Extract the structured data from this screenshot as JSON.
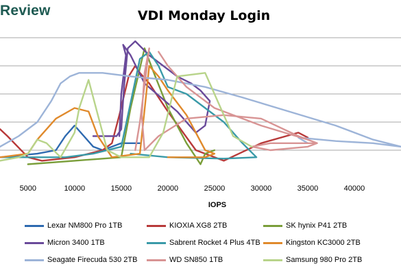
{
  "brand": "Review",
  "chart_data": {
    "type": "scatter",
    "title": "VDI Monday Login",
    "xlabel": "IOPS",
    "ylabel": "",
    "xlim": [
      2000,
      45000
    ],
    "ylim": [
      0,
      2.0
    ],
    "xticks": [
      5000,
      10000,
      15000,
      20000,
      25000,
      30000,
      35000,
      40000
    ],
    "grid": "horizontal",
    "legend_position": "bottom",
    "series": [
      {
        "name": "Lexar NM800 Pro 1TB",
        "color": "#2e6ab0",
        "x": [
          2000,
          6000,
          8000,
          9000,
          10000,
          11000,
          12000,
          13000,
          14000,
          15000,
          17000
        ],
        "y": [
          0.3,
          0.35,
          0.4,
          0.6,
          0.75,
          0.6,
          0.45,
          0.4,
          0.45,
          0.5,
          0.5
        ]
      },
      {
        "name": "KIOXIA XG8 2TB",
        "color": "#b83a3a",
        "x": [
          2000,
          2800,
          5000,
          6500,
          10000,
          13000,
          14000,
          14800,
          15800,
          16500,
          17000,
          18000,
          20000,
          23000,
          26000,
          30000,
          34000,
          35000
        ],
        "y": [
          0.7,
          0.6,
          0.3,
          0.25,
          0.3,
          0.4,
          0.5,
          0.9,
          1.45,
          1.6,
          1.5,
          1.35,
          0.95,
          0.4,
          0.25,
          0.5,
          0.65,
          0.58
        ]
      },
      {
        "name": "SK hynix P41 2TB",
        "color": "#7a9e3a",
        "x": [
          5000,
          10000,
          15000,
          16000,
          17500,
          18500,
          20000,
          22000,
          23500,
          24000,
          25000
        ],
        "y": [
          0.2,
          0.25,
          0.3,
          1.0,
          1.85,
          1.5,
          1.0,
          0.5,
          0.2,
          0.35,
          0.4
        ]
      },
      {
        "name": "Micron 3400 1TB",
        "color": "#6a4a9a",
        "x": [
          12000,
          14500,
          15000,
          15300,
          15700,
          16500,
          18000,
          19500,
          21000,
          22500,
          23500,
          24500,
          24000,
          23000,
          21000,
          17500,
          16000,
          15200,
          15500,
          15000,
          14800
        ],
        "y": [
          0.6,
          0.6,
          0.7,
          1.3,
          1.85,
          1.95,
          1.75,
          1.6,
          1.45,
          1.35,
          1.25,
          1.1,
          0.75,
          0.65,
          0.95,
          1.35,
          1.75,
          1.9,
          1.75,
          1.2,
          0.6
        ]
      },
      {
        "name": "Sabrent Rocket 4 Plus 4TB",
        "color": "#3a9aa8",
        "x": [
          2000,
          9000,
          12000,
          15000,
          17000,
          18000,
          19000,
          20000,
          22000,
          24000,
          26000,
          28000,
          29500,
          26000,
          20000,
          16000
        ],
        "y": [
          0.3,
          0.3,
          0.35,
          0.45,
          1.7,
          1.8,
          1.6,
          1.3,
          1.2,
          1.0,
          0.8,
          0.5,
          0.3,
          0.28,
          0.3,
          0.35
        ]
      },
      {
        "name": "Kingston KC3000 2TB",
        "color": "#e08a2c",
        "x": [
          2000,
          5000,
          6000,
          8000,
          10000,
          11500,
          12500,
          14000,
          17000,
          18000,
          19000,
          20000,
          22000,
          24000,
          25000,
          24000,
          22000,
          20000
        ],
        "y": [
          0.3,
          0.35,
          0.55,
          0.85,
          1.0,
          0.95,
          0.6,
          0.3,
          0.35,
          1.6,
          1.45,
          1.25,
          0.9,
          0.4,
          0.35,
          0.3,
          0.3,
          0.3
        ]
      },
      {
        "name": "Seagate Firecuda 530 2TB",
        "color": "#9db4d8",
        "x": [
          2000,
          4000,
          6000,
          7500,
          8500,
          9500,
          10500,
          13000,
          16000,
          20000,
          24000,
          28000,
          33000,
          38000,
          42000,
          45000,
          42000,
          38000,
          34000,
          35000
        ],
        "y": [
          0.45,
          0.6,
          0.8,
          1.1,
          1.35,
          1.45,
          1.5,
          1.5,
          1.45,
          1.4,
          1.3,
          1.15,
          0.95,
          0.75,
          0.55,
          0.45,
          0.5,
          0.53,
          0.58,
          0.5
        ]
      },
      {
        "name": "WD SN850 1TB",
        "color": "#d89494",
        "x": [
          16500,
          17000,
          18000,
          17500,
          17200,
          17500,
          19000,
          22000,
          26000,
          30000,
          34000,
          36000,
          35000,
          31000,
          29000,
          31000,
          36000,
          35000,
          30000,
          25000,
          22000,
          20000,
          19000
        ],
        "y": [
          0.4,
          0.8,
          1.85,
          1.5,
          0.9,
          0.4,
          0.6,
          0.85,
          0.9,
          0.85,
          0.6,
          0.5,
          0.45,
          0.4,
          0.45,
          0.5,
          0.5,
          0.55,
          0.75,
          1.0,
          1.3,
          1.6,
          1.8
        ]
      },
      {
        "name": "Samsung 980 Pro 2TB",
        "color": "#b8d48a",
        "x": [
          2000,
          4000,
          5000,
          6000,
          7000,
          8500,
          10000,
          10500,
          11500,
          12500,
          13500,
          15000,
          18000,
          19500,
          21000,
          24000,
          27000,
          29000
        ],
        "y": [
          0.25,
          0.3,
          0.35,
          0.55,
          0.5,
          0.3,
          0.65,
          1.0,
          1.4,
          0.9,
          0.4,
          0.3,
          0.3,
          0.65,
          1.45,
          1.5,
          0.6,
          0.45
        ]
      }
    ]
  }
}
